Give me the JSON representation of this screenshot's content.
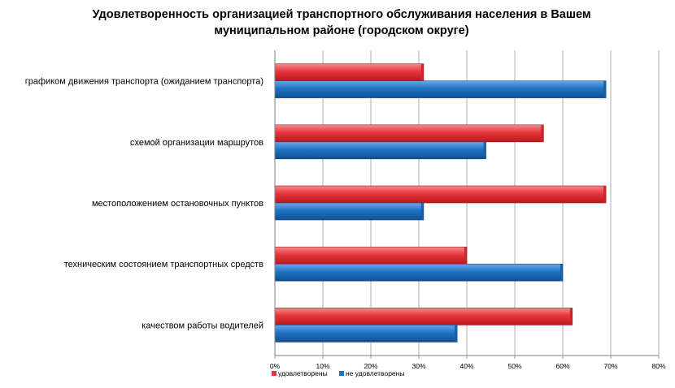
{
  "chart_data": {
    "type": "bar",
    "orientation": "horizontal",
    "title_line1": "Удовлетворенность организацией транспортного обслуживания  населения в Вашем",
    "title_line2": "муниципальном районе (городском округе)",
    "categories": [
      "графиком движения транспорта (ожиданием транспорта)",
      "схемой организации маршрутов",
      "местоположением остановочных пунктов",
      "техническим состоянием транспортных средств",
      "качеством работы водителей"
    ],
    "series": [
      {
        "name": "удовлетворены",
        "color": "#e8353a",
        "values": [
          31,
          56,
          69,
          40,
          62
        ]
      },
      {
        "name": "не удовлетворены",
        "color": "#1f73c4",
        "values": [
          69,
          44,
          31,
          60,
          38
        ]
      }
    ],
    "xlim": [
      0,
      80
    ],
    "xticks": [
      "0%",
      "10%",
      "20%",
      "30%",
      "40%",
      "50%",
      "60%",
      "70%",
      "80%"
    ],
    "grid": true,
    "legend_position": "bottom-left"
  }
}
